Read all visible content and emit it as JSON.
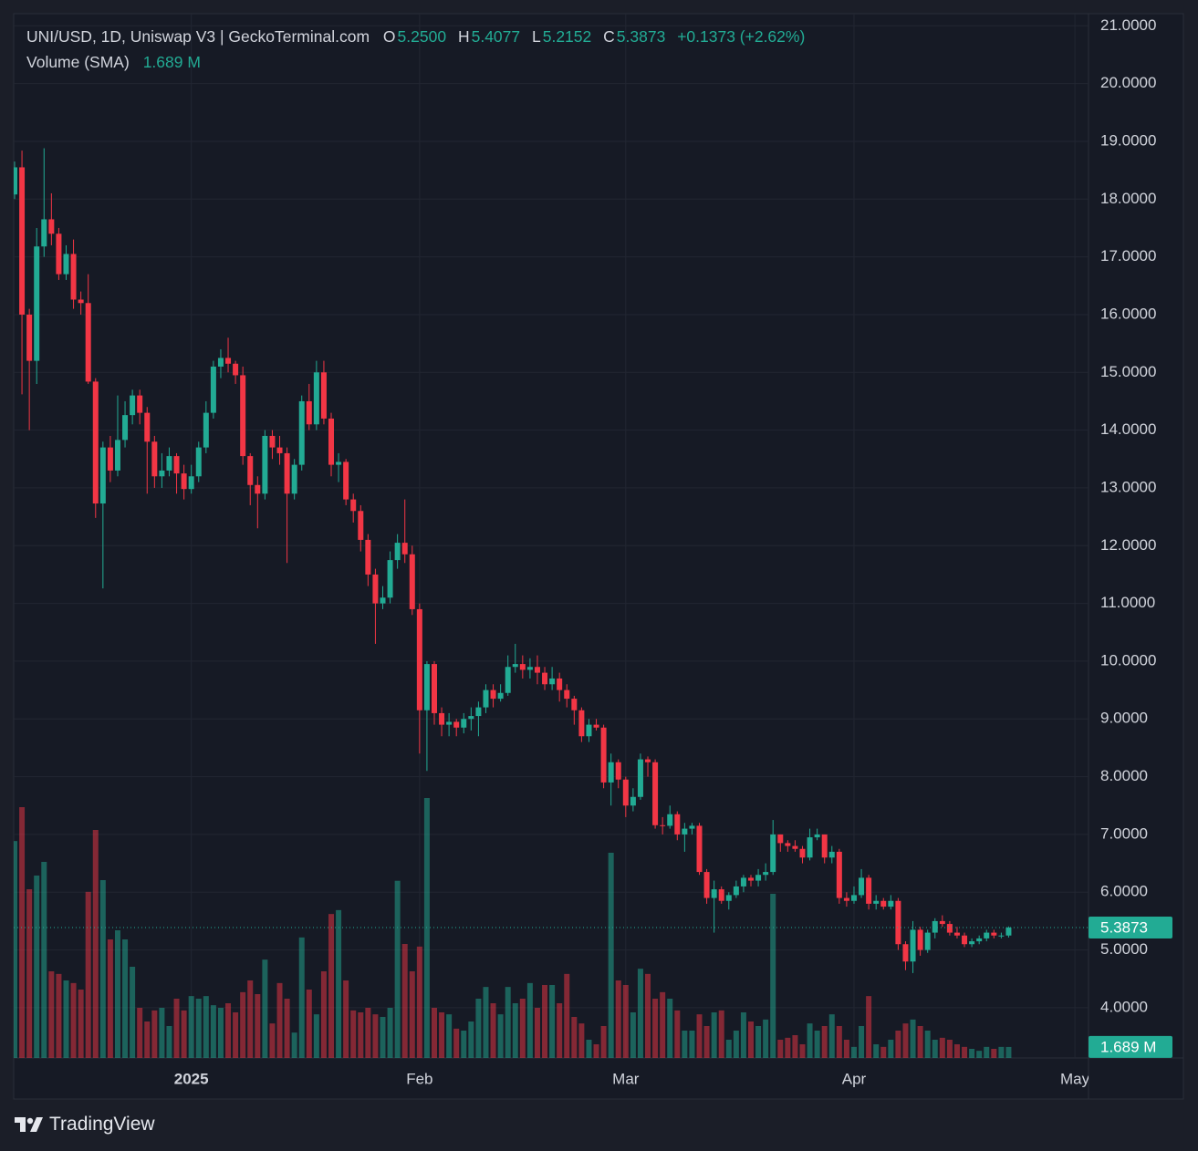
{
  "chart_data": {
    "type": "candlestick",
    "title": "UNI/USD, 1D, Uniswap V3 | GeckoTerminal.com",
    "legend": {
      "o_label": "O",
      "open": "5.2500",
      "h_label": "H",
      "high": "5.4077",
      "l_label": "L",
      "low": "5.2152",
      "c_label": "C",
      "close": "5.3873",
      "change": "+0.1373 (+2.62%)"
    },
    "up_color": "#22ab94",
    "down_color": "#f23645",
    "open": [
      18.08,
      18.55,
      16.0,
      15.2,
      17.18,
      17.65,
      17.4,
      16.7,
      17.05,
      16.26,
      16.2,
      14.84,
      12.73,
      13.7,
      13.3,
      13.83,
      14.26,
      14.6,
      14.3,
      13.8,
      13.2,
      13.3,
      13.55,
      13.25,
      12.98,
      13.2,
      13.7,
      14.3,
      15.1,
      15.25,
      15.15,
      14.95,
      13.55,
      13.05,
      12.9,
      13.9,
      13.7,
      13.6,
      12.9,
      13.4,
      14.5,
      14.1,
      15.0,
      14.2,
      13.4,
      13.45,
      12.8,
      12.6,
      12.1,
      11.5,
      11.0,
      11.1,
      11.75,
      12.05,
      11.85,
      10.9,
      9.15,
      9.95,
      9.1,
      8.9,
      8.95,
      8.85,
      9.0,
      9.05,
      9.2,
      9.5,
      9.35,
      9.45,
      9.9,
      9.95,
      9.85,
      9.9,
      9.8,
      9.6,
      9.7,
      9.5,
      9.35,
      9.15,
      8.7,
      8.9,
      8.85,
      7.9,
      8.25,
      7.95,
      7.5,
      7.65,
      8.3,
      8.25,
      7.16,
      7.15,
      7.35,
      7.0,
      7.1,
      7.15,
      6.35,
      5.9,
      6.05,
      5.85,
      5.95,
      6.1,
      6.25,
      6.2,
      6.3,
      6.35,
      7.0,
      6.85,
      6.8,
      6.75,
      6.6,
      6.95,
      7.0,
      6.6,
      6.7,
      5.9,
      5.85,
      5.95,
      6.25,
      5.8,
      5.85,
      5.75,
      5.85,
      5.1,
      4.8,
      5.35,
      5.0,
      5.3,
      5.5,
      5.45,
      5.3,
      5.25,
      5.1,
      5.15,
      5.2,
      5.3,
      5.25,
      5.25
    ],
    "high": [
      18.65,
      18.84,
      16.1,
      17.5,
      18.88,
      18.1,
      17.5,
      17.2,
      17.3,
      16.4,
      16.7,
      14.9,
      13.8,
      13.9,
      14.6,
      14.5,
      14.7,
      14.7,
      14.4,
      13.9,
      13.6,
      13.7,
      13.6,
      13.4,
      13.4,
      13.8,
      14.5,
      15.2,
      15.4,
      15.6,
      15.2,
      15.1,
      13.6,
      13.2,
      14.0,
      14.0,
      13.9,
      13.7,
      13.5,
      14.6,
      14.8,
      15.2,
      15.2,
      14.3,
      13.6,
      13.5,
      12.9,
      12.7,
      12.2,
      11.6,
      11.3,
      11.9,
      12.2,
      12.8,
      12.0,
      11.0,
      10.0,
      10.0,
      9.2,
      9.1,
      9.0,
      9.1,
      9.2,
      9.3,
      9.6,
      9.6,
      9.6,
      10.1,
      10.3,
      10.1,
      10.05,
      10.1,
      9.9,
      9.9,
      9.8,
      9.6,
      9.4,
      9.2,
      9.0,
      9.0,
      8.9,
      8.4,
      8.3,
      8.0,
      7.8,
      8.4,
      8.35,
      8.3,
      7.3,
      7.5,
      7.4,
      7.2,
      7.2,
      7.2,
      6.4,
      6.2,
      6.1,
      6.0,
      6.2,
      6.3,
      6.3,
      6.4,
      6.5,
      7.25,
      7.0,
      6.9,
      6.9,
      6.8,
      7.1,
      7.1,
      7.0,
      6.8,
      6.75,
      6.0,
      6.1,
      6.4,
      6.3,
      5.95,
      5.9,
      5.95,
      5.9,
      5.15,
      5.5,
      5.4,
      5.35,
      5.55,
      5.6,
      5.5,
      5.4,
      5.3,
      5.2,
      5.25,
      5.35,
      5.35,
      5.3,
      5.4077
    ],
    "low": [
      18.0,
      14.62,
      14.0,
      14.8,
      17.0,
      17.2,
      16.6,
      16.6,
      16.1,
      16.0,
      14.8,
      12.48,
      11.26,
      13.1,
      13.2,
      13.7,
      14.1,
      14.1,
      12.9,
      13.0,
      13.0,
      13.2,
      12.9,
      12.8,
      12.9,
      13.1,
      13.6,
      14.2,
      14.9,
      15.0,
      14.8,
      13.4,
      12.7,
      12.3,
      12.8,
      13.5,
      13.4,
      11.7,
      12.8,
      13.3,
      14.0,
      14.0,
      14.1,
      13.2,
      13.1,
      12.7,
      12.4,
      11.9,
      11.3,
      10.3,
      10.9,
      11.0,
      11.6,
      11.7,
      10.8,
      8.4,
      8.1,
      8.9,
      8.7,
      8.7,
      8.7,
      8.75,
      8.8,
      8.7,
      9.1,
      9.2,
      9.3,
      9.4,
      9.8,
      9.7,
      9.7,
      9.6,
      9.5,
      9.5,
      9.3,
      9.2,
      8.9,
      8.6,
      8.6,
      8.8,
      7.8,
      7.5,
      7.8,
      7.3,
      7.4,
      7.6,
      8.0,
      7.1,
      7.0,
      7.1,
      6.9,
      6.7,
      7.0,
      6.3,
      5.8,
      5.3,
      5.8,
      5.7,
      5.9,
      6.0,
      6.1,
      6.1,
      6.2,
      6.3,
      6.7,
      6.7,
      6.7,
      6.5,
      6.55,
      6.9,
      6.5,
      6.5,
      5.8,
      5.75,
      5.8,
      5.9,
      5.7,
      5.7,
      5.7,
      5.7,
      5.0,
      4.65,
      4.6,
      4.9,
      4.95,
      5.2,
      5.4,
      5.25,
      5.2,
      5.05,
      5.05,
      5.1,
      5.15,
      5.2,
      5.2,
      5.2152
    ],
    "close": [
      18.55,
      16.0,
      15.2,
      17.18,
      17.65,
      17.4,
      16.7,
      17.05,
      16.26,
      16.2,
      14.84,
      12.73,
      13.7,
      13.3,
      13.83,
      14.26,
      14.6,
      14.3,
      13.8,
      13.2,
      13.3,
      13.55,
      13.25,
      12.98,
      13.2,
      13.7,
      14.3,
      15.1,
      15.25,
      15.15,
      14.95,
      13.55,
      13.05,
      12.9,
      13.9,
      13.7,
      13.6,
      12.9,
      13.4,
      14.5,
      14.1,
      15.0,
      14.2,
      13.4,
      13.45,
      12.8,
      12.6,
      12.1,
      11.5,
      11.0,
      11.1,
      11.75,
      12.05,
      11.85,
      10.9,
      9.15,
      9.95,
      9.1,
      8.9,
      8.95,
      8.85,
      9.0,
      9.05,
      9.2,
      9.5,
      9.35,
      9.45,
      9.9,
      9.95,
      9.85,
      9.9,
      9.8,
      9.6,
      9.7,
      9.5,
      9.35,
      9.15,
      8.7,
      8.9,
      8.85,
      7.9,
      8.25,
      7.95,
      7.5,
      7.65,
      8.3,
      8.25,
      7.16,
      7.15,
      7.35,
      7.0,
      7.1,
      7.15,
      6.35,
      5.9,
      6.05,
      5.85,
      5.95,
      6.1,
      6.25,
      6.2,
      6.3,
      6.35,
      7.0,
      6.85,
      6.8,
      6.75,
      6.6,
      6.95,
      7.0,
      6.6,
      6.7,
      5.9,
      5.85,
      5.95,
      6.25,
      5.8,
      5.85,
      5.75,
      5.85,
      5.1,
      4.8,
      5.35,
      5.0,
      5.3,
      5.5,
      5.45,
      5.3,
      5.25,
      5.1,
      5.15,
      5.2,
      5.3,
      5.25,
      5.25,
      5.3873
    ],
    "volume": {
      "name": "Volume (SMA)",
      "last_label": "1.689 M",
      "values": [
        33.3,
        38.5,
        25.9,
        28,
        30.1,
        13.3,
        12.9,
        11.9,
        11.5,
        10.5,
        25.5,
        35,
        27.3,
        18.2,
        19.6,
        18.2,
        14,
        7.7,
        5.6,
        7.3,
        7.7,
        4.9,
        9.1,
        7.3,
        9.5,
        9.1,
        9.5,
        8.1,
        7.7,
        8.4,
        7,
        10.1,
        11.9,
        9.8,
        15.1,
        5.3,
        11.5,
        9.1,
        3.9,
        18.5,
        10.5,
        6.7,
        13.3,
        22.1,
        22.7,
        11.9,
        7.3,
        7,
        7.7,
        6.7,
        6.3,
        7.7,
        27.2,
        17.5,
        13.3,
        17.1,
        39.9,
        7.7,
        7,
        6.7,
        4.5,
        4.2,
        5.6,
        9.1,
        10.9,
        8.4,
        6.7,
        10.9,
        8.4,
        9.1,
        11.5,
        7.7,
        11.2,
        11.2,
        8.4,
        12.9,
        6.3,
        5.3,
        2.8,
        2.1,
        4.9,
        31.5,
        11.9,
        11.2,
        7,
        13.7,
        12.9,
        9.1,
        10.1,
        9.1,
        7.3,
        4.2,
        4.2,
        6.7,
        4.9,
        7,
        7.3,
        2.8,
        4.2,
        7,
        5.6,
        4.9,
        5.9,
        25.2,
        2.8,
        3.1,
        3.5,
        2.1,
        5.3,
        4.2,
        4.9,
        6.7,
        4.9,
        2.8,
        1.7,
        4.9,
        9.5,
        2.1,
        1.7,
        2.8,
        4.2,
        5.3,
        5.9,
        4.9,
        4.2,
        2.8,
        3.1,
        2.8,
        2.1,
        1.7,
        1.4,
        1.1,
        1.7,
        1.4,
        1.7,
        1.689
      ]
    },
    "ylim": [
      3.13,
      21.21
    ],
    "yticks": [
      {
        "value": 4,
        "label": "4.0000"
      },
      {
        "value": 5,
        "label": "5.0000"
      },
      {
        "value": 6,
        "label": "6.0000"
      },
      {
        "value": 7,
        "label": "7.0000"
      },
      {
        "value": 8,
        "label": "8.0000"
      },
      {
        "value": 9,
        "label": "9.0000"
      },
      {
        "value": 10,
        "label": "10.0000"
      },
      {
        "value": 11,
        "label": "11.0000"
      },
      {
        "value": 12,
        "label": "12.0000"
      },
      {
        "value": 13,
        "label": "13.0000"
      },
      {
        "value": 14,
        "label": "14.0000"
      },
      {
        "value": 15,
        "label": "15.0000"
      },
      {
        "value": 16,
        "label": "16.0000"
      },
      {
        "value": 17,
        "label": "17.0000"
      },
      {
        "value": 18,
        "label": "18.0000"
      },
      {
        "value": 19,
        "label": "19.0000"
      },
      {
        "value": 20,
        "label": "20.0000"
      },
      {
        "value": 21,
        "label": "21.0000"
      }
    ],
    "xticks": [
      {
        "value": 24,
        "label": "2025"
      },
      {
        "value": 55,
        "label": "Feb"
      },
      {
        "value": 83,
        "label": "Mar"
      },
      {
        "value": 114,
        "label": "Apr"
      },
      {
        "value": 144,
        "label": "May"
      }
    ],
    "grid": true
  },
  "brand": "TradingView"
}
